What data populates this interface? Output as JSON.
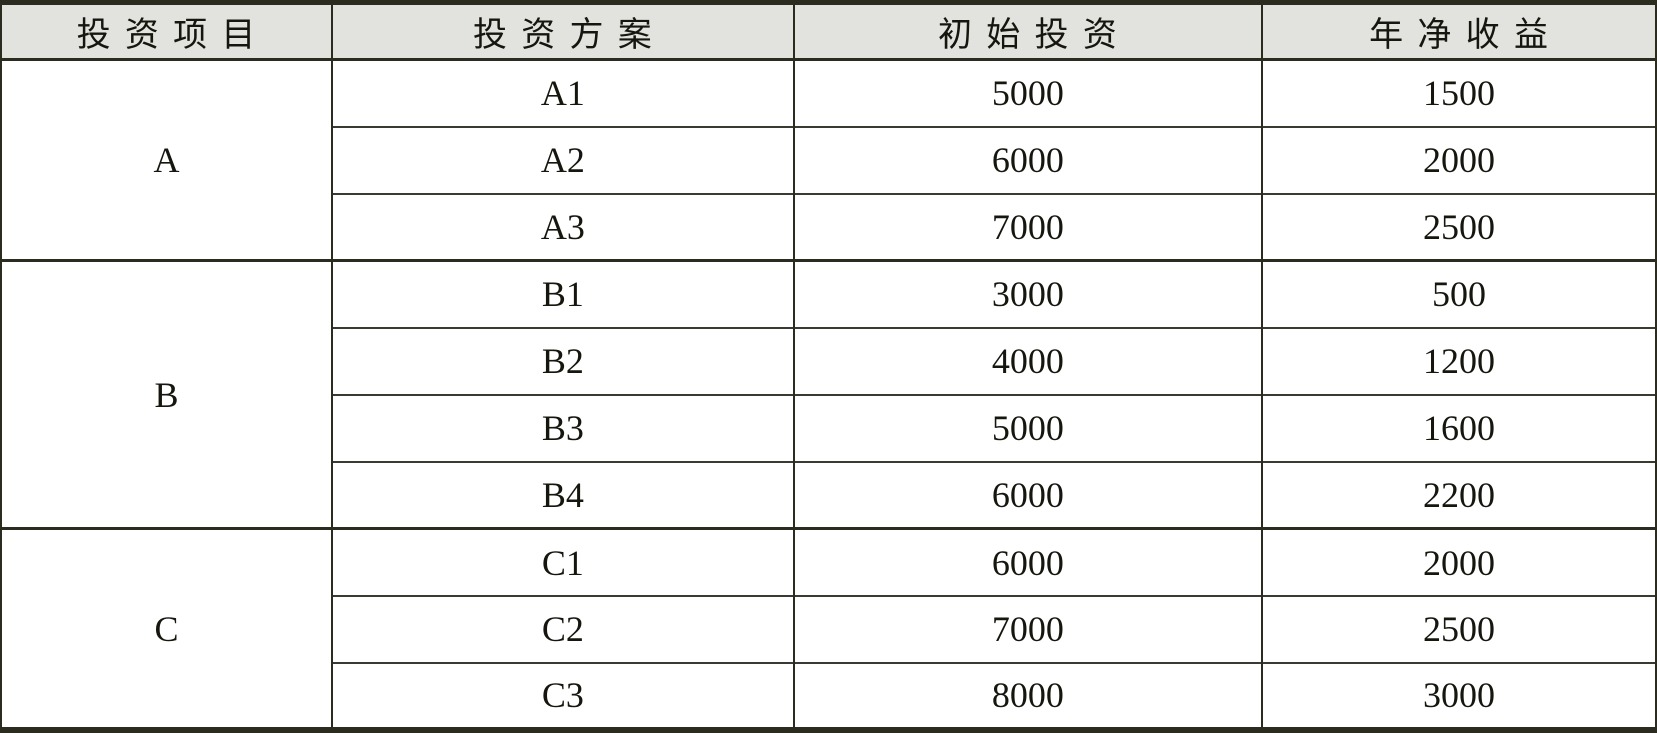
{
  "colors": {
    "border": "#2b2b1f",
    "header_bg": "#e2e2de",
    "text": "#16160f",
    "body_bg": "#ffffff"
  },
  "table": {
    "headers": [
      "投资项目",
      "投资方案",
      "初始投资",
      "年净收益"
    ],
    "groups": [
      {
        "project": "A",
        "rows": [
          {
            "plan": "A1",
            "initial": "5000",
            "annual": "1500"
          },
          {
            "plan": "A2",
            "initial": "6000",
            "annual": "2000"
          },
          {
            "plan": "A3",
            "initial": "7000",
            "annual": "2500"
          }
        ]
      },
      {
        "project": "B",
        "rows": [
          {
            "plan": "B1",
            "initial": "3000",
            "annual": "500"
          },
          {
            "plan": "B2",
            "initial": "4000",
            "annual": "1200"
          },
          {
            "plan": "B3",
            "initial": "5000",
            "annual": "1600"
          },
          {
            "plan": "B4",
            "initial": "6000",
            "annual": "2200"
          }
        ]
      },
      {
        "project": "C",
        "rows": [
          {
            "plan": "C1",
            "initial": "6000",
            "annual": "2000"
          },
          {
            "plan": "C2",
            "initial": "7000",
            "annual": "2500"
          },
          {
            "plan": "C3",
            "initial": "8000",
            "annual": "3000"
          }
        ]
      }
    ]
  }
}
